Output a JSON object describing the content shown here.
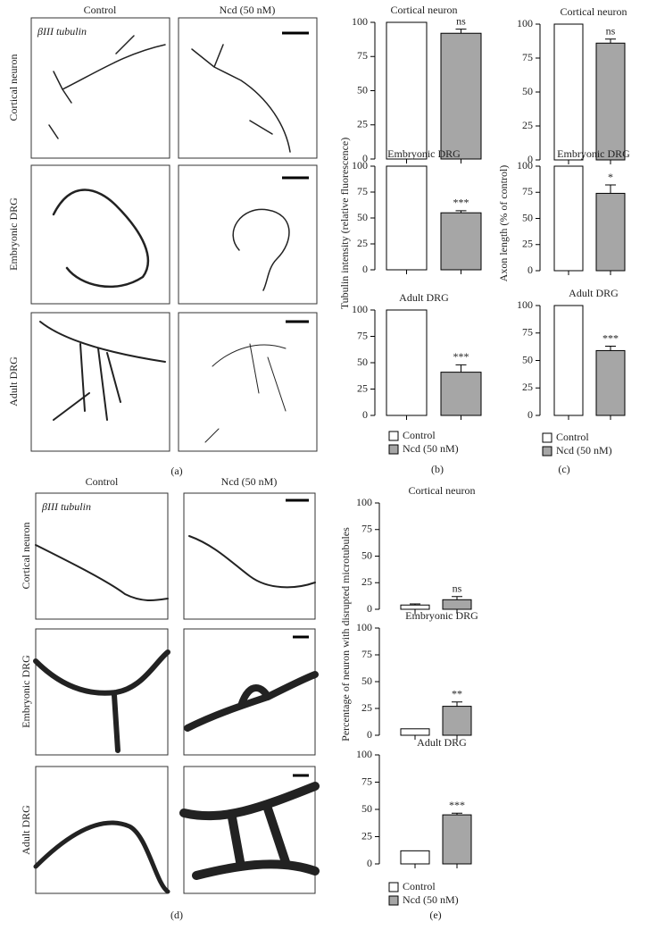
{
  "figure": {
    "panel_labels": [
      "(a)",
      "(b)",
      "(c)",
      "(d)",
      "(e)"
    ],
    "micrographs": [
      {
        "columns": [
          "Control",
          "Ncd (50 nM)"
        ],
        "rows": [
          "Cortical neuron",
          "Embryonic DRG",
          "Adult DRG"
        ],
        "stain": "βIII tubulin"
      },
      {
        "columns": [
          "Control",
          "Ncd (50 nM)"
        ],
        "rows": [
          "Cortical neuron",
          "Embryonic DRG",
          "Adult DRG"
        ],
        "stain": "βIII tubulin"
      }
    ]
  },
  "chart_data": [
    {
      "type": "bar",
      "title": "Cortical neuron",
      "ylim": [
        0,
        100
      ],
      "yticks": [
        0,
        25,
        50,
        75,
        100
      ],
      "annotation": "ns",
      "series": [
        {
          "name": "Control",
          "color": "#ffffff",
          "values": [
            100
          ]
        },
        {
          "name": "Ncd (50 nM)",
          "color": "#a6a6a6",
          "values": [
            92
          ],
          "errors": [
            3
          ]
        }
      ]
    },
    {
      "type": "bar",
      "title": "Embryonic DRG",
      "ylabel": "Tubulin intensity (relative fluorescence)",
      "ylim": [
        0,
        100
      ],
      "yticks": [
        0,
        25,
        50,
        75,
        100
      ],
      "annotation": "***",
      "series": [
        {
          "name": "Control",
          "color": "#ffffff",
          "values": [
            100
          ]
        },
        {
          "name": "Ncd (50 nM)",
          "color": "#a6a6a6",
          "values": [
            55
          ],
          "errors": [
            2
          ]
        }
      ]
    },
    {
      "type": "bar",
      "title": "Adult DRG",
      "ylim": [
        0,
        100
      ],
      "yticks": [
        0,
        25,
        50,
        75,
        100
      ],
      "annotation": "***",
      "series": [
        {
          "name": "Control",
          "color": "#ffffff",
          "values": [
            100
          ]
        },
        {
          "name": "Ncd (50 nM)",
          "color": "#a6a6a6",
          "values": [
            41
          ],
          "errors": [
            7
          ]
        }
      ]
    },
    {
      "type": "bar",
      "title": "Cortical neuron",
      "ylim": [
        0,
        100
      ],
      "yticks": [
        0,
        25,
        50,
        75,
        100
      ],
      "annotation": "ns",
      "series": [
        {
          "name": "Control",
          "color": "#ffffff",
          "values": [
            100
          ]
        },
        {
          "name": "Ncd (50 nM)",
          "color": "#a6a6a6",
          "values": [
            86
          ],
          "errors": [
            3
          ]
        }
      ]
    },
    {
      "type": "bar",
      "title": "Embryonic DRG",
      "ylabel": "Axon length (% of control)",
      "ylim": [
        0,
        100
      ],
      "yticks": [
        0,
        25,
        50,
        75,
        100
      ],
      "annotation": "*",
      "series": [
        {
          "name": "Control",
          "color": "#ffffff",
          "values": [
            100
          ]
        },
        {
          "name": "Ncd (50 nM)",
          "color": "#a6a6a6",
          "values": [
            74
          ],
          "errors": [
            8
          ]
        }
      ]
    },
    {
      "type": "bar",
      "title": "Adult DRG",
      "ylim": [
        0,
        100
      ],
      "yticks": [
        0,
        25,
        50,
        75,
        100
      ],
      "annotation": "***",
      "series": [
        {
          "name": "Control",
          "color": "#ffffff",
          "values": [
            100
          ]
        },
        {
          "name": "Ncd (50 nM)",
          "color": "#a6a6a6",
          "values": [
            59
          ],
          "errors": [
            4
          ]
        }
      ]
    },
    {
      "type": "bar",
      "title": "Cortical neuron",
      "ylim": [
        0,
        100
      ],
      "yticks": [
        0,
        25,
        50,
        75,
        100
      ],
      "annotation": "ns",
      "series": [
        {
          "name": "Control",
          "color": "#ffffff",
          "values": [
            4
          ],
          "errors": [
            1
          ]
        },
        {
          "name": "Ncd (50 nM)",
          "color": "#a6a6a6",
          "values": [
            9
          ],
          "errors": [
            3
          ]
        }
      ]
    },
    {
      "type": "bar",
      "title": "Embryonic DRG",
      "ylabel": "Percentage of neuron with disrupted microtubules",
      "ylim": [
        0,
        100
      ],
      "yticks": [
        0,
        25,
        50,
        75,
        100
      ],
      "annotation": "**",
      "series": [
        {
          "name": "Control",
          "color": "#ffffff",
          "values": [
            6
          ]
        },
        {
          "name": "Ncd (50 nM)",
          "color": "#a6a6a6",
          "values": [
            27
          ],
          "errors": [
            4
          ]
        }
      ]
    },
    {
      "type": "bar",
      "title": "Adult DRG",
      "ylim": [
        0,
        100
      ],
      "yticks": [
        0,
        25,
        50,
        75,
        100
      ],
      "annotation": "***",
      "series": [
        {
          "name": "Control",
          "color": "#ffffff",
          "values": [
            12
          ]
        },
        {
          "name": "Ncd (50 nM)",
          "color": "#a6a6a6",
          "values": [
            45
          ],
          "errors": [
            1.5
          ]
        }
      ]
    }
  ]
}
